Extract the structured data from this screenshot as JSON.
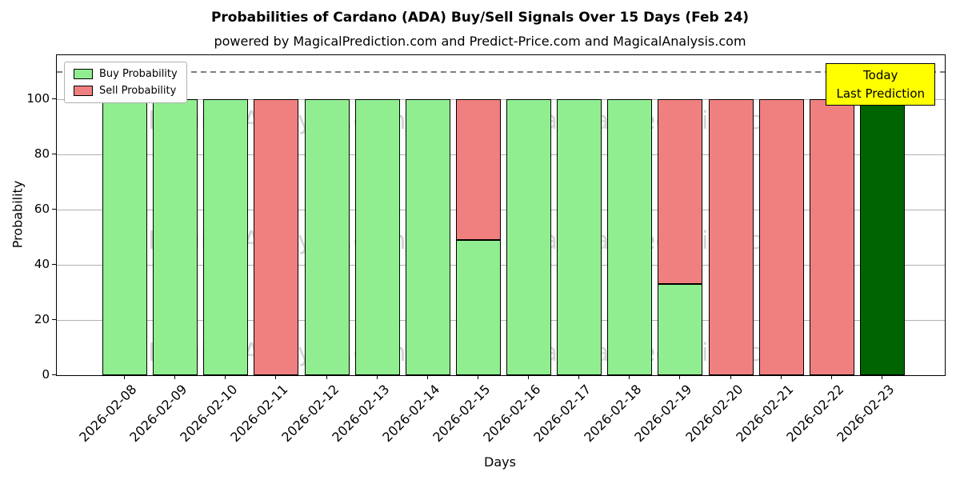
{
  "chart_data": {
    "type": "bar",
    "stacked": true,
    "title": "Probabilities of Cardano (ADA) Buy/Sell Signals Over 15 Days (Feb 24)",
    "subtitle": "powered by MagicalPrediction.com and Predict-Price.com and MagicalAnalysis.com",
    "xlabel": "Days",
    "ylabel": "Probability",
    "ylim": [
      0,
      116
    ],
    "yticks": [
      0,
      20,
      40,
      60,
      80,
      100
    ],
    "dashed_line_y": 110,
    "grid": true,
    "legend_position": "upper-left",
    "categories": [
      "2026-02-08",
      "2026-02-09",
      "2026-02-10",
      "2026-02-11",
      "2026-02-12",
      "2026-02-13",
      "2026-02-14",
      "2026-02-15",
      "2026-02-16",
      "2026-02-17",
      "2026-02-18",
      "2026-02-19",
      "2026-02-20",
      "2026-02-21",
      "2026-02-22",
      "2026-02-23"
    ],
    "series": [
      {
        "name": "Buy Probability",
        "color": "#90ee90",
        "values": [
          100,
          100,
          100,
          0,
          100,
          100,
          100,
          49,
          100,
          100,
          100,
          33,
          0,
          0,
          0,
          100
        ]
      },
      {
        "name": "Sell Probability",
        "color": "#f08080",
        "values": [
          0,
          0,
          0,
          100,
          0,
          0,
          0,
          51,
          0,
          0,
          0,
          67,
          100,
          100,
          100,
          0
        ]
      }
    ],
    "bar_edge_color": "#000000",
    "legend": {
      "entries": [
        {
          "label": "Buy Probability",
          "color": "#90ee90"
        },
        {
          "label": "Sell Probability",
          "color": "#f08080"
        }
      ]
    },
    "today": {
      "index": 15,
      "bar_color": "#006400",
      "box_color": "#ffff00",
      "label_lines": [
        "Today",
        "Last Prediction"
      ]
    },
    "watermarks": {
      "color": "#b8b8b8",
      "opacity": 0.6,
      "rows_y_pct": [
        20.5,
        58,
        93
      ],
      "texts": [
        {
          "text": "MagicalAnalysis.com",
          "x_pct": 24.8
        },
        {
          "text": "MagicalPrediction.com",
          "x_pct": 68
        }
      ]
    }
  }
}
